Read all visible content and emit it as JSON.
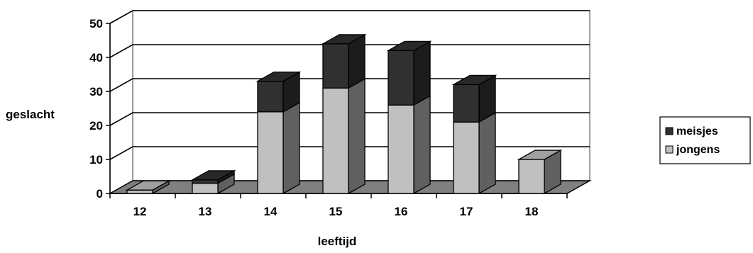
{
  "chart_data": {
    "type": "bar",
    "stacked": true,
    "three_d": true,
    "categories": [
      "12",
      "13",
      "14",
      "15",
      "16",
      "17",
      "18"
    ],
    "series": [
      {
        "name": "jongens",
        "values": [
          1,
          3,
          24,
          31,
          26,
          21,
          10
        ]
      },
      {
        "name": "meisjes",
        "values": [
          0,
          1,
          9,
          13,
          16,
          11,
          0
        ]
      }
    ],
    "xlabel": "leeftijd",
    "ylabel": "geslacht",
    "ylim": [
      0,
      50
    ],
    "yticks": [
      "0",
      "10",
      "20",
      "30",
      "40",
      "50"
    ],
    "grid": true,
    "legend": "right",
    "colors": {
      "jongens_front": "#c0c0c0",
      "jongens_side": "#606060",
      "jongens_top": "#a0a0a0",
      "meisjes_front": "#303030",
      "meisjes_side": "#1c1c1c",
      "meisjes_top": "#282828",
      "floor": "#808080",
      "walls": "#ffffff",
      "outline": "#000000"
    }
  }
}
